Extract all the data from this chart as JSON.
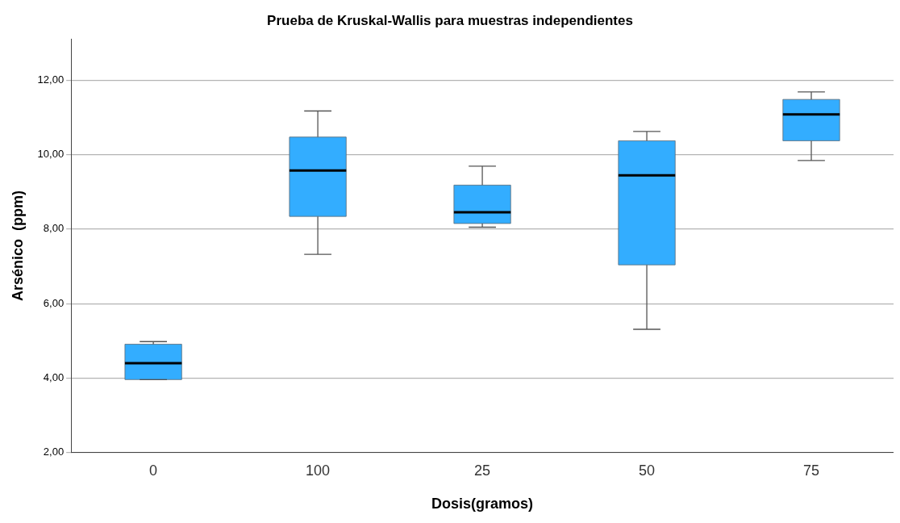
{
  "chart_data": {
    "type": "box",
    "title": "Prueba de Kruskal-Wallis para muestras independientes",
    "xlabel": "Dosis(gramos)",
    "ylabel": "Arsénico  (ppm)",
    "categories": [
      "0",
      "100",
      "25",
      "50",
      "75"
    ],
    "color": "#33adff",
    "boxes": [
      {
        "low": 3.96,
        "q1": 3.96,
        "median": 4.4,
        "q3": 4.91,
        "high": 4.98
      },
      {
        "low": 7.32,
        "q1": 8.34,
        "median": 9.57,
        "q3": 10.47,
        "high": 11.17
      },
      {
        "low": 8.05,
        "q1": 8.15,
        "median": 8.45,
        "q3": 9.18,
        "high": 9.69
      },
      {
        "low": 5.31,
        "q1": 7.04,
        "median": 9.44,
        "q3": 10.37,
        "high": 10.62
      },
      {
        "low": 9.84,
        "q1": 10.37,
        "median": 11.08,
        "q3": 11.48,
        "high": 11.68
      }
    ],
    "ylim": [
      2,
      13.1
    ],
    "yticks": [
      {
        "value": 2,
        "label": "2,00"
      },
      {
        "value": 4,
        "label": "4,00"
      },
      {
        "value": 6,
        "label": "6,00"
      },
      {
        "value": 8,
        "label": "8,00"
      },
      {
        "value": 10,
        "label": "10,00"
      },
      {
        "value": 12,
        "label": "12,00"
      }
    ],
    "grid": "y"
  }
}
